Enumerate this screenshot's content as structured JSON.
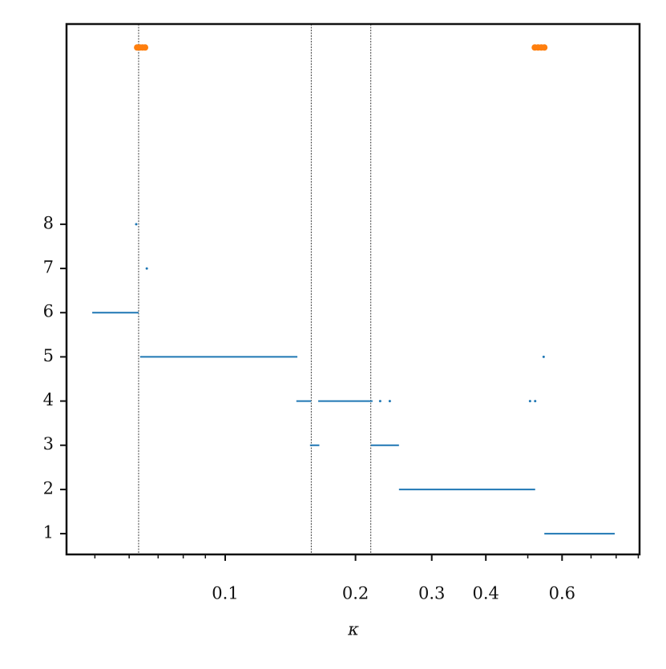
{
  "chart_data": {
    "type": "scatter",
    "x_label": "κ",
    "xscale": "log",
    "xlim": [
      0.043,
      0.906
    ],
    "ylim": [
      0.53,
      12.53
    ],
    "xticks": [
      0.1,
      0.2,
      0.3,
      0.4,
      0.6
    ],
    "xminor": [
      0.05,
      0.06,
      0.07,
      0.08,
      0.09,
      0.5,
      0.7,
      0.8,
      0.9
    ],
    "yticks": [
      1,
      2,
      3,
      4,
      5,
      6,
      7,
      8
    ],
    "vlines": [
      0.0631,
      0.158,
      0.217
    ],
    "series": [
      {
        "type": "line",
        "color": "#1f77b4",
        "x": [
          0.0493,
          0.0631,
          null,
          0.0636,
          0.1468,
          null,
          0.146,
          0.158,
          null,
          0.164,
          0.219,
          null,
          0.157,
          0.165,
          null,
          0.217,
          0.252,
          null,
          0.252,
          0.52,
          null,
          0.546,
          0.794
        ],
        "values": [
          6,
          6,
          null,
          5,
          5,
          null,
          4,
          4,
          null,
          4,
          4,
          null,
          3,
          3,
          null,
          3,
          3,
          null,
          2,
          2,
          null,
          1,
          1
        ]
      },
      {
        "type": "scatter",
        "color": "#1f77b4",
        "size": 1.5,
        "x": [
          0.0623,
          0.0659,
          0.228,
          0.24,
          0.506,
          0.52,
          0.544
        ],
        "values": [
          8,
          7,
          4,
          4,
          4,
          4,
          5
        ]
      },
      {
        "type": "scatter",
        "color": "#ff7f0e",
        "size": 4,
        "x": [
          0.0626,
          0.0635,
          0.0644,
          0.0653,
          0.519,
          0.528,
          0.537,
          0.546
        ],
        "values": [
          12,
          12,
          12,
          12,
          12,
          12,
          12,
          12
        ]
      }
    ]
  }
}
